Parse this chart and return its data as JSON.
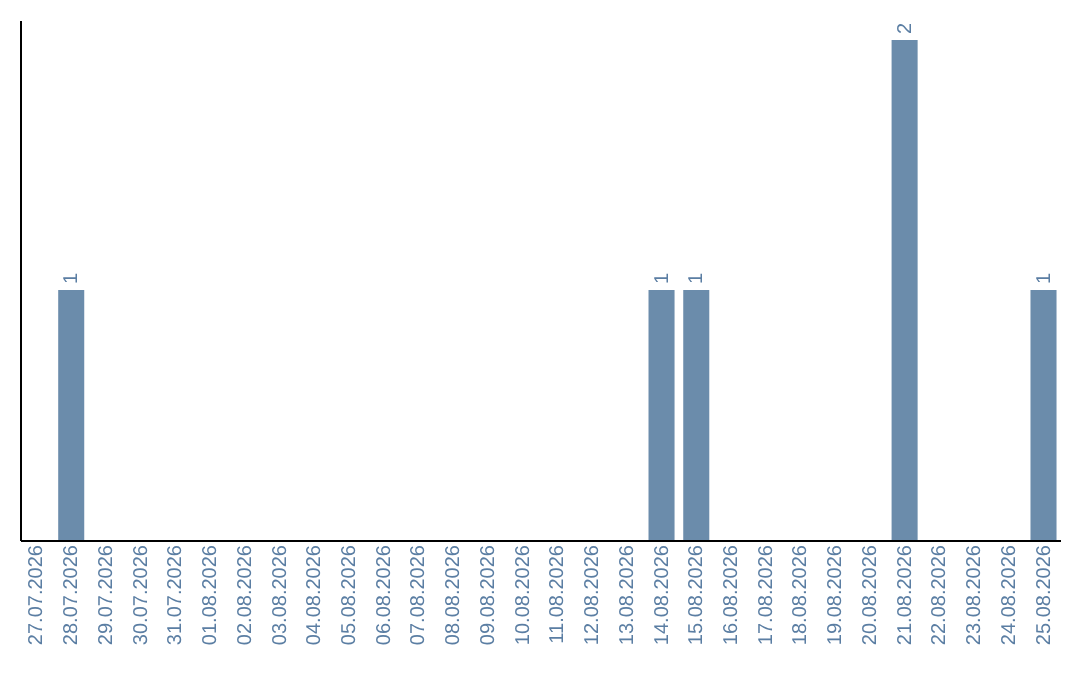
{
  "chart_data": {
    "type": "bar",
    "categories": [
      "27.07.2026",
      "28.07.2026",
      "29.07.2026",
      "30.07.2026",
      "31.07.2026",
      "01.08.2026",
      "02.08.2026",
      "03.08.2026",
      "04.08.2026",
      "05.08.2026",
      "06.08.2026",
      "07.08.2026",
      "08.08.2026",
      "09.08.2026",
      "10.08.2026",
      "11.08.2026",
      "12.08.2026",
      "13.08.2026",
      "14.08.2026",
      "15.08.2026",
      "16.08.2026",
      "17.08.2026",
      "18.08.2026",
      "19.08.2026",
      "20.08.2026",
      "21.08.2026",
      "22.08.2026",
      "23.08.2026",
      "24.08.2026",
      "25.08.2026"
    ],
    "values": [
      0,
      1,
      0,
      0,
      0,
      0,
      0,
      0,
      0,
      0,
      0,
      0,
      0,
      0,
      0,
      0,
      0,
      0,
      1,
      1,
      0,
      0,
      0,
      0,
      0,
      2,
      0,
      0,
      0,
      1
    ],
    "value_labels": [
      null,
      "1",
      null,
      null,
      null,
      null,
      null,
      null,
      null,
      null,
      null,
      null,
      null,
      null,
      null,
      null,
      null,
      null,
      "1",
      "1",
      null,
      null,
      null,
      null,
      null,
      "2",
      null,
      null,
      null,
      "1"
    ],
    "color": "#6b8cab"
  }
}
